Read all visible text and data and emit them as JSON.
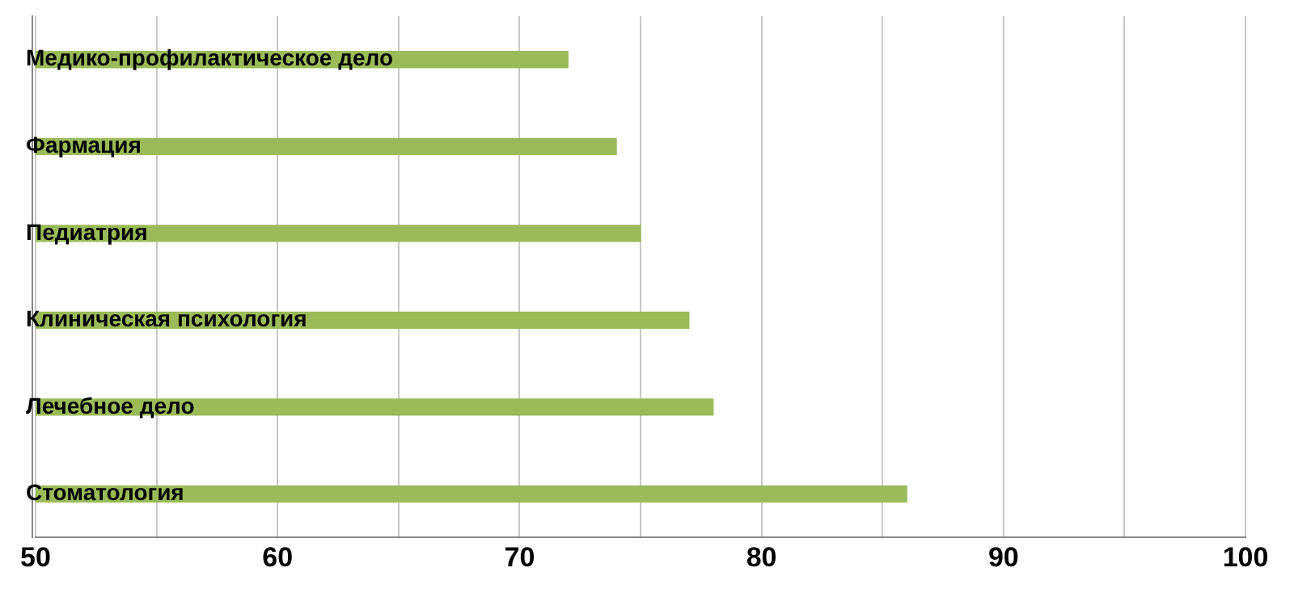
{
  "chart_data": {
    "type": "bar",
    "orientation": "horizontal",
    "categories": [
      "Медико-профилактическое дело",
      "Фармация",
      "Педиатрия",
      "Клиническая психология",
      "Лечебное дело",
      "Стоматология"
    ],
    "values": [
      72,
      74,
      75,
      77,
      78,
      86
    ],
    "color": "#9bbb59",
    "xlim": [
      50,
      100
    ],
    "xticks": [
      50,
      {
        "value": 55,
        "label": null
      },
      60,
      {
        "value": 65,
        "label": null
      },
      70,
      {
        "value": 75,
        "label": null
      },
      80,
      {
        "value": 85,
        "label": null
      },
      90,
      {
        "value": 95,
        "label": null
      },
      100
    ],
    "grid": "x",
    "legend": false
  }
}
